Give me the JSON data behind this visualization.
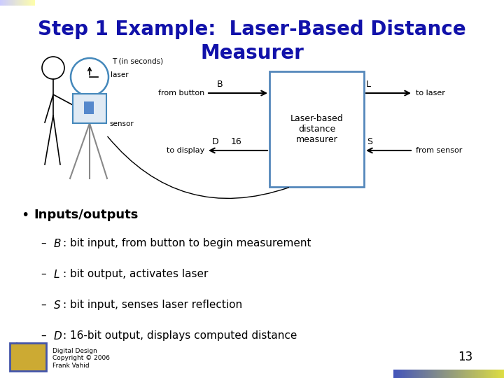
{
  "title_line1": "Step 1 Example:  Laser-Based Distance",
  "title_line2": "Measurer",
  "title_color": "#1111AA",
  "title_fontsize": 20,
  "bg_color": "#FFFFFF",
  "box_color": "#5588BB",
  "box_label": "Laser-based\ndistance\nmeasurer",
  "label_B": "B",
  "label_L": "L",
  "label_D": "D",
  "label_S": "S",
  "label_16": "16",
  "text_from_button": "from button",
  "text_to_laser": "to laser",
  "text_to_display": "to display",
  "text_from_sensor": "from sensor",
  "text_T": "T (in seconds)",
  "text_laser": "laser",
  "text_sensor": "sensor",
  "bullet_header": "Inputs/outputs",
  "bullet_items": [
    [
      "B",
      ": bit input, from button to begin measurement"
    ],
    [
      "L",
      ": bit output, activates laser"
    ],
    [
      "S",
      ": bit input, senses laser reflection"
    ],
    [
      "D",
      ": 16-bit output, displays computed distance"
    ]
  ],
  "footer_text": "Digital Design\nCopyright © 2006\nFrank Vahid",
  "page_number": "13"
}
